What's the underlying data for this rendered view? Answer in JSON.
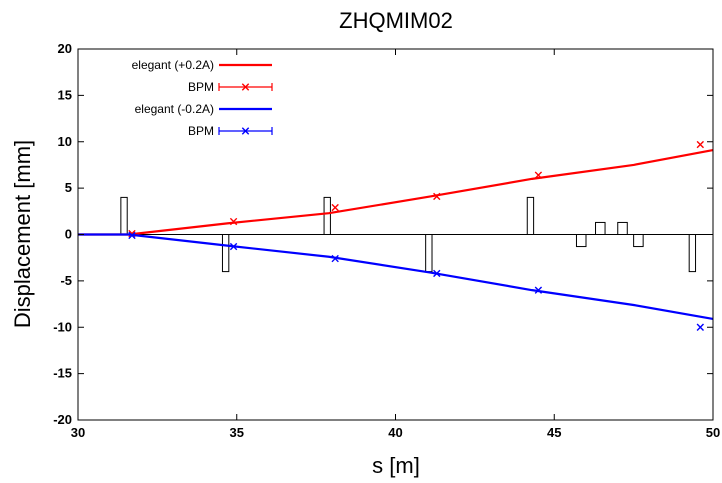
{
  "chart_data": {
    "type": "line",
    "title": "ZHQMIM02",
    "xlabel": "s [m]",
    "ylabel": "Displacement [mm]",
    "xlim": [
      30,
      50
    ],
    "ylim": [
      -20,
      20
    ],
    "xticks": [
      30,
      35,
      40,
      45,
      50
    ],
    "yticks": [
      -20,
      -15,
      -10,
      -5,
      0,
      5,
      10,
      15,
      20
    ],
    "grid": false,
    "legend_position": "top-left",
    "series": [
      {
        "name": "elegant (+0.2A)",
        "kind": "line",
        "color": "#ff0000",
        "x": [
          30,
          31.6,
          34.7,
          37.9,
          41.1,
          44.3,
          47.5,
          50
        ],
        "y": [
          0,
          0,
          1.2,
          2.3,
          4.1,
          6.0,
          7.5,
          9.1
        ]
      },
      {
        "name": "BPM",
        "kind": "points",
        "color": "#ff0000",
        "x": [
          31.7,
          34.9,
          38.1,
          41.3,
          44.5,
          49.6
        ],
        "y": [
          0.1,
          1.4,
          2.9,
          4.1,
          6.4,
          9.7
        ]
      },
      {
        "name": "elegant (-0.2A)",
        "kind": "line",
        "color": "#0000ff",
        "x": [
          30,
          31.6,
          34.7,
          37.9,
          41.1,
          44.3,
          47.5,
          50
        ],
        "y": [
          0,
          0,
          -1.2,
          -2.4,
          -4.1,
          -6.0,
          -7.6,
          -9.1
        ]
      },
      {
        "name": "BPM",
        "kind": "points",
        "color": "#0000ff",
        "x": [
          31.7,
          34.9,
          38.1,
          41.3,
          44.5,
          49.6
        ],
        "y": [
          -0.1,
          -1.3,
          -2.6,
          -4.2,
          -6.0,
          -10.0
        ]
      }
    ],
    "elements": [
      {
        "x0": 31.35,
        "x1": 31.55,
        "y": 4
      },
      {
        "x0": 34.55,
        "x1": 34.75,
        "y": -4
      },
      {
        "x0": 37.75,
        "x1": 37.95,
        "y": 4
      },
      {
        "x0": 40.95,
        "x1": 41.15,
        "y": -4
      },
      {
        "x0": 44.15,
        "x1": 44.35,
        "y": 4
      },
      {
        "x0": 45.7,
        "x1": 46.0,
        "y": -1.3
      },
      {
        "x0": 46.3,
        "x1": 46.6,
        "y": 1.3
      },
      {
        "x0": 47.0,
        "x1": 47.3,
        "y": 1.3
      },
      {
        "x0": 47.5,
        "x1": 47.8,
        "y": -1.3
      },
      {
        "x0": 49.25,
        "x1": 49.45,
        "y": -4
      }
    ]
  }
}
